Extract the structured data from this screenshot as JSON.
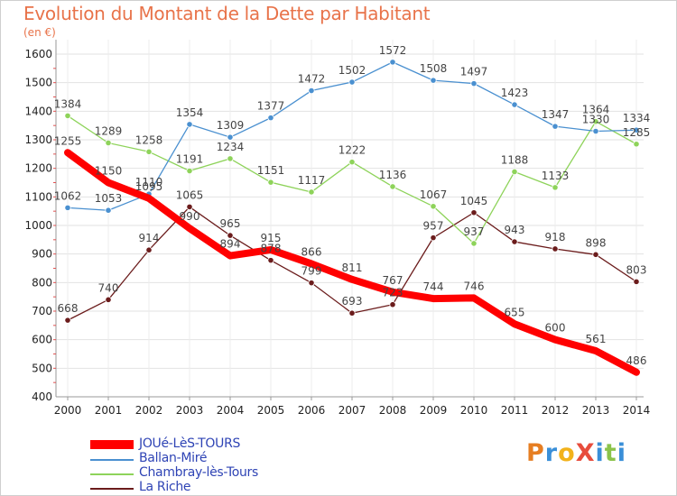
{
  "title": "Evolution du Montant de la Dette par Habitant",
  "subtitle": "(en €)",
  "logo": {
    "text": "ProXiti",
    "colors": [
      "#e67e22",
      "#3a8fd8",
      "#f2b21b",
      "#e74c3c",
      "#3a8fd8",
      "#8bc34a",
      "#3a8fd8"
    ]
  },
  "chart_data": {
    "type": "line",
    "x": [
      "2000",
      "2001",
      "2002",
      "2003",
      "2004",
      "2005",
      "2006",
      "2007",
      "2008",
      "2009",
      "2010",
      "2011",
      "2012",
      "2013",
      "2014"
    ],
    "ylim": [
      400,
      1600
    ],
    "yticks": [
      "400",
      "500",
      "600",
      "700",
      "800",
      "900",
      "1000",
      "1100",
      "1200",
      "1300",
      "1400",
      "1500",
      "1600"
    ],
    "grid": true,
    "legend_position": "bottom-left",
    "series": [
      {
        "name": "JOUé-LèS-TOURS",
        "color": "#ff0000",
        "width": 8,
        "values": [
          1255,
          1150,
          1095,
          990,
          894,
          915,
          866,
          811,
          767,
          744,
          746,
          655,
          600,
          561,
          486
        ],
        "labels": [
          "1255",
          "1150",
          "1095",
          "990",
          "894",
          "915",
          "866",
          "811",
          "767",
          "744",
          "746",
          "655",
          "600",
          "561",
          "486"
        ]
      },
      {
        "name": "Ballan-Miré",
        "color": "#4a90d0",
        "width": 1.3,
        "values": [
          1062,
          1053,
          1110,
          1354,
          1309,
          1377,
          1472,
          1502,
          1572,
          1508,
          1497,
          1423,
          1347,
          1330,
          1334
        ],
        "labels": [
          "1062",
          "1053",
          "1110",
          "1354",
          "1309",
          "1377",
          "1472",
          "1502",
          "1572",
          "1508",
          "1497",
          "1423",
          "1347",
          "1330",
          "1334"
        ]
      },
      {
        "name": "Chambray-lès-Tours",
        "color": "#8ed35a",
        "width": 1.3,
        "values": [
          1384,
          1289,
          1258,
          1191,
          1234,
          1151,
          1117,
          1222,
          1136,
          1067,
          937,
          1188,
          1133,
          1364,
          1285
        ],
        "labels": [
          "1384",
          "1289",
          "1258",
          "1191",
          "1234",
          "1151",
          "1117",
          "1222",
          "1136",
          "1067",
          "937",
          "1188",
          "1133",
          "1364",
          "1285"
        ]
      },
      {
        "name": "La Riche",
        "color": "#6b1c1c",
        "width": 1.3,
        "values": [
          668,
          740,
          914,
          1065,
          965,
          878,
          799,
          693,
          723,
          957,
          1045,
          943,
          918,
          898,
          803
        ],
        "labels": [
          "668",
          "740",
          "914",
          "1065",
          "965",
          "878",
          "799",
          "693",
          "723",
          "957",
          "1045",
          "943",
          "918",
          "898",
          "803"
        ]
      }
    ]
  }
}
